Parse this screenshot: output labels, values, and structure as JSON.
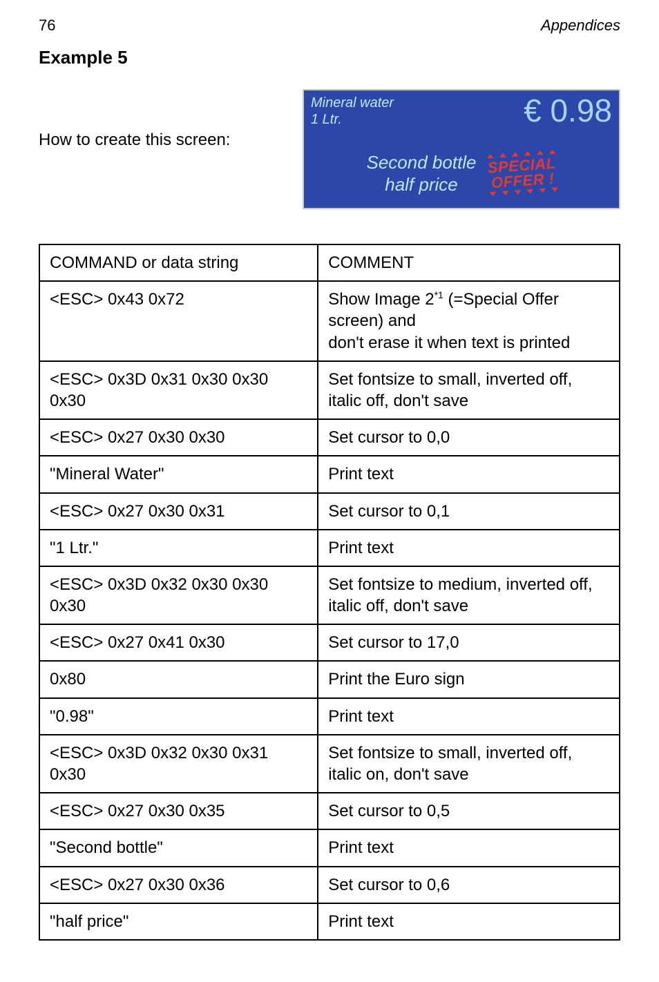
{
  "header": {
    "page_number": "76",
    "section": "Appendices"
  },
  "title": "Example 5",
  "intro_text": "How to create this screen:",
  "screen": {
    "background_color": "#2d46aa",
    "top_text_color": "#bfe6f2",
    "price_color": "#a7d5ff",
    "promo_text_color": "#bfe6f2",
    "badge_color": "#e23a2e",
    "line1": "Mineral water",
    "line2": "1 Ltr.",
    "price": "€ 0.98",
    "promo_line1": "Second bottle",
    "promo_line2": "half price",
    "badge_line1": "SPECIAL",
    "badge_line2": "OFFER !"
  },
  "table": {
    "header_left": "COMMAND  or data string",
    "header_right": "COMMENT",
    "rows": [
      {
        "cmd": "<ESC> 0x43 0x72",
        "comment_parts": [
          "Show Image 2",
          "*1",
          " (=Special Offer screen) and",
          "don't erase it when text is printed"
        ]
      },
      {
        "cmd": "<ESC> 0x3D 0x31 0x30 0x30 0x30",
        "comment": "Set fontsize to small, inverted off, italic off, don't save"
      },
      {
        "cmd": "<ESC> 0x27 0x30 0x30",
        "comment": "Set cursor to 0,0"
      },
      {
        "cmd": "\"Mineral Water\"",
        "comment": "Print text"
      },
      {
        "cmd": "<ESC> 0x27 0x30 0x31",
        "comment": "Set cursor to 0,1"
      },
      {
        "cmd": "\"1 Ltr.\"",
        "comment": "Print text"
      },
      {
        "cmd": "<ESC> 0x3D 0x32 0x30 0x30 0x30",
        "comment": "Set fontsize to medium, inverted off, italic off, don't save"
      },
      {
        "cmd": "<ESC> 0x27 0x41 0x30",
        "comment": "Set cursor to 17,0"
      },
      {
        "cmd": "0x80",
        "comment": "Print the Euro sign"
      },
      {
        "cmd": "\"0.98\"",
        "comment": "Print text"
      },
      {
        "cmd": "<ESC> 0x3D 0x32 0x30 0x31 0x30",
        "comment": "Set fontsize to small, inverted off, italic on, don't save"
      },
      {
        "cmd": "<ESC> 0x27 0x30 0x35",
        "comment": "Set cursor to 0,5"
      },
      {
        "cmd": "\"Second bottle\"",
        "comment": "Print text"
      },
      {
        "cmd": "<ESC> 0x27 0x30 0x36",
        "comment": "Set cursor to 0,6"
      },
      {
        "cmd": "\"half price\"",
        "comment": "Print text"
      }
    ]
  }
}
